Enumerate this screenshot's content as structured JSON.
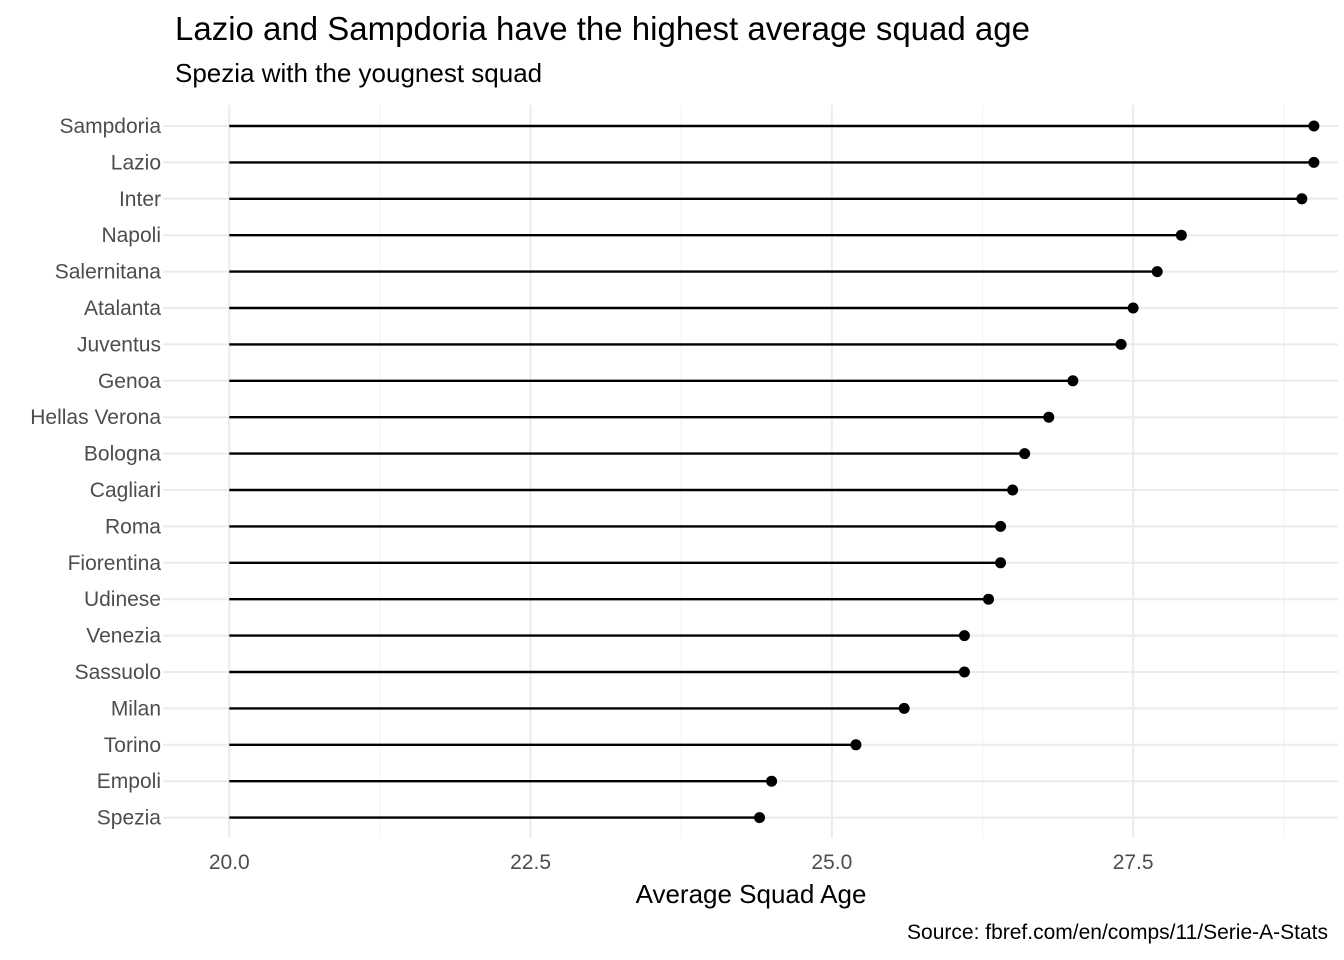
{
  "chart_data": {
    "type": "lollipop",
    "title": "Lazio and Sampdoria have the highest average squad age",
    "subtitle": "Spezia with the yougnest squad",
    "xlabel": "Average Squad Age",
    "ylabel": "",
    "caption": "Source: fbref.com/en/comps/11/Serie-A-Stats",
    "baseline": 20.0,
    "xlim": [
      19.45,
      29.2
    ],
    "x_ticks": [
      20.0,
      22.5,
      25.0,
      27.5
    ],
    "x_tick_labels": [
      "20.0",
      "22.5",
      "25.0",
      "27.5"
    ],
    "grid": true,
    "categories": [
      "Sampdoria",
      "Lazio",
      "Inter",
      "Napoli",
      "Salernitana",
      "Atalanta",
      "Juventus",
      "Genoa",
      "Hellas Verona",
      "Bologna",
      "Cagliari",
      "Roma",
      "Fiorentina",
      "Udinese",
      "Venezia",
      "Sassuolo",
      "Milan",
      "Torino",
      "Empoli",
      "Spezia"
    ],
    "values": [
      29.0,
      29.0,
      28.9,
      27.9,
      27.7,
      27.5,
      27.4,
      27.0,
      26.8,
      26.6,
      26.5,
      26.4,
      26.4,
      26.3,
      26.1,
      26.1,
      25.6,
      25.2,
      24.5,
      24.4
    ],
    "colors": {
      "line": "#000000",
      "point": "#000000",
      "grid_major": "#ebebeb",
      "grid_minor": "#f3f3f3",
      "text": "#4d4d4d"
    }
  }
}
